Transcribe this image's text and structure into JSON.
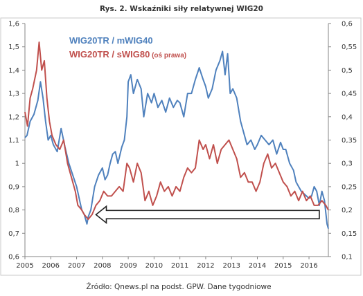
{
  "chart_data": {
    "type": "line",
    "title": "Rys. 2. Wskaźniki siły relatywnej WIG20",
    "source": "Źródło: Qnews.pl na podst. GPW. Dane tygodniowe",
    "xlabel": "",
    "ylabel": "",
    "x_ticks": [
      "2005",
      "2006",
      "2007",
      "2008",
      "2009",
      "2010",
      "2011",
      "2012",
      "2013",
      "2014",
      "2015",
      "2016"
    ],
    "xlim": [
      2005.0,
      2016.75
    ],
    "y_left": {
      "lim": [
        0.6,
        1.6
      ],
      "ticks": [
        "0,6",
        "0,7",
        "0,8",
        "0,9",
        "1",
        "1,1",
        "1,2",
        "1,3",
        "1,4",
        "1,5",
        "1,6"
      ]
    },
    "y_right": {
      "lim": [
        0.1,
        0.6
      ],
      "ticks": [
        "0,1",
        "0,15",
        "0,2",
        "0,25",
        "0,3",
        "0,35",
        "0,4",
        "0,45",
        "0,5",
        "0,55",
        "0,6"
      ]
    },
    "grid": false,
    "legend_position": "top-center",
    "series": [
      {
        "name": "WIG20TR / mWIG40",
        "axis": "left",
        "color": "#4f81bd",
        "x": [
          2005.0,
          2005.08,
          2005.2,
          2005.35,
          2005.5,
          2005.6,
          2005.7,
          2005.8,
          2005.9,
          2006.0,
          2006.1,
          2006.25,
          2006.4,
          2006.55,
          2006.7,
          2006.85,
          2007.0,
          2007.1,
          2007.2,
          2007.3,
          2007.4,
          2007.45,
          2007.55,
          2007.7,
          2007.85,
          2008.0,
          2008.1,
          2008.2,
          2008.3,
          2008.4,
          2008.5,
          2008.6,
          2008.75,
          2008.85,
          2008.95,
          2009.0,
          2009.1,
          2009.2,
          2009.35,
          2009.5,
          2009.6,
          2009.75,
          2009.9,
          2010.0,
          2010.15,
          2010.3,
          2010.45,
          2010.6,
          2010.75,
          2010.9,
          2011.0,
          2011.15,
          2011.3,
          2011.45,
          2011.6,
          2011.75,
          2011.9,
          2012.0,
          2012.1,
          2012.25,
          2012.4,
          2012.55,
          2012.65,
          2012.75,
          2012.85,
          2012.95,
          2013.05,
          2013.2,
          2013.35,
          2013.5,
          2013.6,
          2013.75,
          2013.9,
          2014.0,
          2014.15,
          2014.3,
          2014.45,
          2014.6,
          2014.75,
          2014.9,
          2015.0,
          2015.1,
          2015.25,
          2015.4,
          2015.5,
          2015.6,
          2015.7,
          2015.8,
          2015.9,
          2016.0,
          2016.1,
          2016.2,
          2016.3,
          2016.4,
          2016.5,
          2016.6,
          2016.7,
          2016.75
        ],
        "y": [
          1.11,
          1.12,
          1.18,
          1.21,
          1.27,
          1.35,
          1.28,
          1.18,
          1.1,
          1.12,
          1.08,
          1.05,
          1.15,
          1.07,
          1.0,
          0.95,
          0.9,
          0.85,
          0.8,
          0.78,
          0.74,
          0.77,
          0.8,
          0.9,
          0.95,
          0.98,
          0.93,
          0.95,
          1.0,
          1.04,
          1.05,
          1.0,
          1.07,
          1.1,
          1.2,
          1.35,
          1.38,
          1.3,
          1.36,
          1.32,
          1.2,
          1.3,
          1.26,
          1.3,
          1.24,
          1.27,
          1.22,
          1.28,
          1.24,
          1.27,
          1.26,
          1.2,
          1.3,
          1.3,
          1.36,
          1.41,
          1.36,
          1.33,
          1.28,
          1.32,
          1.4,
          1.44,
          1.48,
          1.38,
          1.47,
          1.3,
          1.32,
          1.28,
          1.18,
          1.12,
          1.08,
          1.1,
          1.06,
          1.08,
          1.12,
          1.1,
          1.08,
          1.1,
          1.04,
          1.09,
          1.06,
          1.06,
          1.0,
          0.97,
          0.92,
          0.9,
          0.88,
          0.87,
          0.86,
          0.85,
          0.86,
          0.9,
          0.88,
          0.82,
          0.88,
          0.84,
          0.74,
          0.72
        ]
      },
      {
        "name": "WIG20TR / sWIG80 (oś prawa)",
        "axis": "right",
        "color": "#c0504d",
        "x": [
          2005.0,
          2005.1,
          2005.2,
          2005.3,
          2005.45,
          2005.55,
          2005.65,
          2005.75,
          2005.85,
          2005.95,
          2006.05,
          2006.2,
          2006.35,
          2006.5,
          2006.65,
          2006.8,
          2006.95,
          2007.05,
          2007.2,
          2007.3,
          2007.45,
          2007.6,
          2007.75,
          2007.9,
          2008.05,
          2008.2,
          2008.35,
          2008.5,
          2008.65,
          2008.8,
          2008.95,
          2009.05,
          2009.2,
          2009.35,
          2009.5,
          2009.65,
          2009.8,
          2009.95,
          2010.1,
          2010.25,
          2010.4,
          2010.55,
          2010.7,
          2010.85,
          2011.0,
          2011.15,
          2011.3,
          2011.45,
          2011.6,
          2011.75,
          2011.9,
          2012.0,
          2012.15,
          2012.3,
          2012.45,
          2012.6,
          2012.75,
          2012.9,
          2013.05,
          2013.2,
          2013.35,
          2013.5,
          2013.65,
          2013.8,
          2013.95,
          2014.1,
          2014.25,
          2014.4,
          2014.55,
          2014.7,
          2014.85,
          2015.0,
          2015.15,
          2015.3,
          2015.45,
          2015.6,
          2015.75,
          2015.9,
          2016.05,
          2016.2,
          2016.35,
          2016.5,
          2016.65,
          2016.75
        ],
        "y": [
          0.41,
          0.38,
          0.44,
          0.46,
          0.5,
          0.56,
          0.5,
          0.52,
          0.44,
          0.39,
          0.36,
          0.34,
          0.33,
          0.35,
          0.3,
          0.27,
          0.24,
          0.21,
          0.2,
          0.19,
          0.18,
          0.19,
          0.21,
          0.22,
          0.24,
          0.23,
          0.23,
          0.24,
          0.25,
          0.24,
          0.3,
          0.29,
          0.26,
          0.3,
          0.28,
          0.22,
          0.24,
          0.21,
          0.23,
          0.26,
          0.24,
          0.25,
          0.23,
          0.25,
          0.24,
          0.27,
          0.29,
          0.28,
          0.29,
          0.35,
          0.33,
          0.34,
          0.31,
          0.34,
          0.3,
          0.33,
          0.34,
          0.35,
          0.33,
          0.31,
          0.27,
          0.28,
          0.26,
          0.26,
          0.24,
          0.26,
          0.3,
          0.32,
          0.29,
          0.3,
          0.28,
          0.26,
          0.25,
          0.23,
          0.24,
          0.22,
          0.24,
          0.22,
          0.23,
          0.21,
          0.21,
          0.22,
          0.21,
          0.2
        ]
      }
    ],
    "annotations": [
      {
        "type": "arrow",
        "direction": "left",
        "from": {
          "x": 2016.4,
          "y": 0.78
        },
        "to": {
          "x": 2007.75,
          "y": 0.78
        }
      }
    ]
  }
}
